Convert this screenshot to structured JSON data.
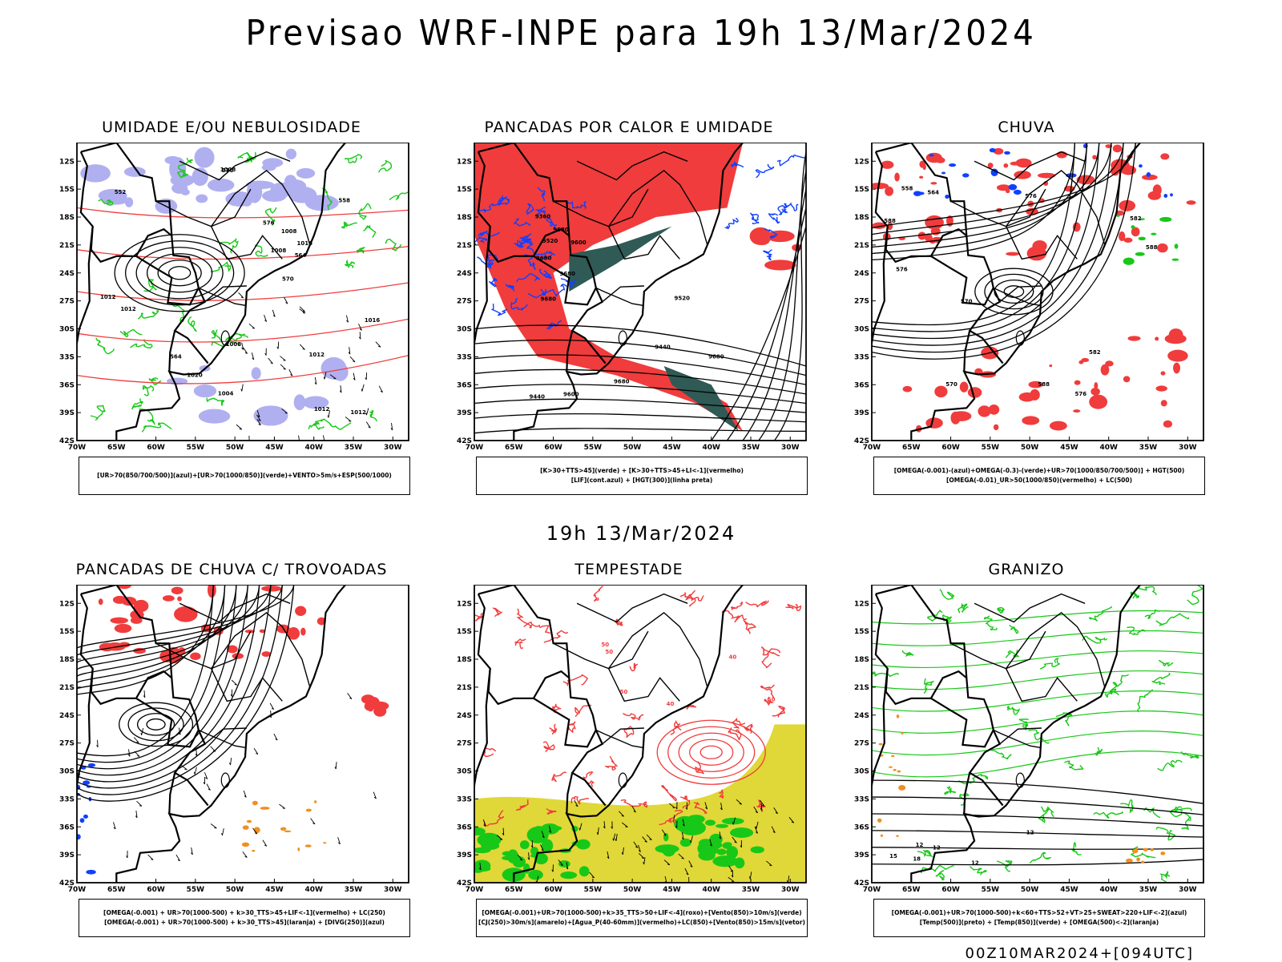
{
  "title": "Previsao WRF-INPE  para 19h 13/Mar/2024",
  "middle_title": "19h 13/Mar/2024",
  "footer": "00Z10MAR2024+[094UTC]",
  "axes": {
    "lat_labels": [
      "12S",
      "15S",
      "18S",
      "21S",
      "24S",
      "27S",
      "30S",
      "33S",
      "36S",
      "39S",
      "42S"
    ],
    "lon_labels": [
      "70W",
      "65W",
      "60W",
      "55W",
      "50W",
      "45W",
      "40W",
      "35W",
      "30W"
    ]
  },
  "panels": [
    {
      "title": "UMIDADE E/OU NEBULOSIDADE",
      "legend": [
        "[UR>70(850/700/500)](azul)+[UR>70(1000/850)](verde)+VENTO>5m/s+ESP(500/1000)"
      ],
      "contour_labels": [
        "1012",
        "1012",
        "1008",
        "1004",
        "1008",
        "1012",
        "1016",
        "1020",
        "1016",
        "1012",
        "1012",
        "1008",
        "1008",
        "552",
        "564",
        "570",
        "576",
        "558",
        "564",
        "570"
      ]
    },
    {
      "title": "PANCADAS POR CALOR E UMIDADE",
      "legend": [
        "[K>30+TTS>45](verde) + [K>30+TTS>45+LI<-1](vermelho)",
        "[LIF](cont.azul) + [HGT(300)](linha preta)"
      ],
      "contour_labels": [
        "9680",
        "9680",
        "9680",
        "9680",
        "9680",
        "9680",
        "9600",
        "9520",
        "9440",
        "9360",
        "9600",
        "9520",
        "9440"
      ]
    },
    {
      "title": "CHUVA",
      "legend": [
        "[OMEGA(-0.001)-(azul)+OMEGA(-0.3)-(verde)+UR>70(1000/850/700/500)] + HGT(500)",
        "[OMEGA(-0.01)_UR>50(1000/850)(vermelho) + LC(500)"
      ],
      "contour_labels": [
        "588",
        "588",
        "582",
        "576",
        "570",
        "564",
        "558",
        "588",
        "582",
        "576",
        "570",
        "576"
      ]
    },
    {
      "title": "PANCADAS DE CHUVA C/ TROVOADAS",
      "legend": [
        "[OMEGA(-0.001) + UR>70(1000-500) + k>30_TTS>45+LIF<-1](vermelho) + LC(250)",
        "[OMEGA(-0.001) + UR>70(1000-500) + k>30_TTS>45](laranja) + [DIVG(250)](azul)"
      ],
      "contour_labels": []
    },
    {
      "title": "TEMPESTADE",
      "legend": [
        "[OMEGA(-0.001)+UR>70(1000-500)+k>35_TTS>50+LIF<-4](roxo)+[Vento(850)>10m/s](verde)",
        "[CJ(250)>30m/s](amarelo)+[Agua_P(40-60mm)](vermelho)+LC(850)+[Vento(850)>15m/s](vetor)"
      ],
      "contour_labels": [
        "50",
        "50",
        "50",
        "40",
        "40",
        "50",
        "40"
      ]
    },
    {
      "title": "GRANIZO",
      "legend": [
        "[OMEGA(-0.001)+UR>70(1000-500)+k<60+TTS>52+VT>25+SWEAT>220+LIF<-2](azul)",
        "[Temp(500)](preto) + [Temp(850)](verde) + [OMEGA(500)<-2](laranja)"
      ],
      "contour_labels": [
        "12",
        "12",
        "18",
        "15",
        "12",
        "12"
      ]
    }
  ],
  "colors": {
    "green": "#18c818",
    "blue": "#1040ff",
    "red": "#f03c3c",
    "lavender": "#b0b0f0",
    "darkteal": "#2f5a55",
    "yellow": "#e0d838",
    "orange": "#f09020",
    "purple": "#a030f0"
  }
}
